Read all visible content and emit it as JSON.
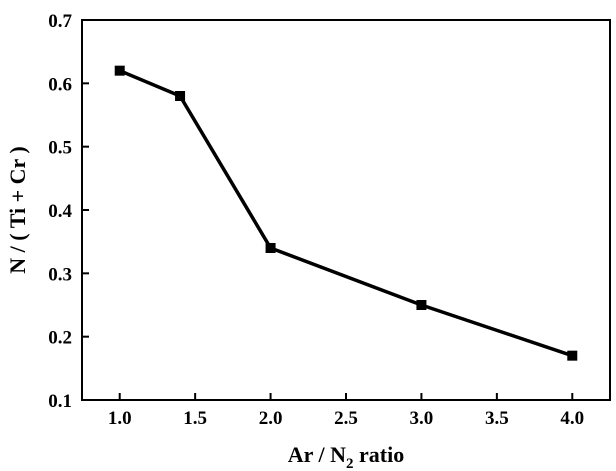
{
  "chart_data": {
    "type": "line",
    "x": [
      1.0,
      1.4,
      2.0,
      3.0,
      4.0
    ],
    "series": [
      {
        "values": [
          0.62,
          0.58,
          0.34,
          0.25,
          0.17
        ]
      }
    ],
    "xlim": [
      0.75,
      4.25
    ],
    "ylim": [
      0.1,
      0.7
    ],
    "xticks": [
      1.0,
      1.5,
      2.0,
      2.5,
      3.0,
      3.5,
      4.0
    ],
    "yticks": [
      0.1,
      0.2,
      0.3,
      0.4,
      0.5,
      0.6,
      0.7
    ],
    "xtick_labels": [
      "1.0",
      "1.5",
      "2.0",
      "2.5",
      "3.0",
      "3.5",
      "4.0"
    ],
    "ytick_labels": [
      "0.1",
      "0.2",
      "0.3",
      "0.4",
      "0.5",
      "0.6",
      "0.7"
    ],
    "xlabel": {
      "pre": "Ar / N",
      "sub": "2",
      "post": " ratio"
    },
    "ylabel": "N / ( Ti + Cr )",
    "title": "",
    "grid": false,
    "legend": "none",
    "marker": "square",
    "color": "#000000"
  }
}
